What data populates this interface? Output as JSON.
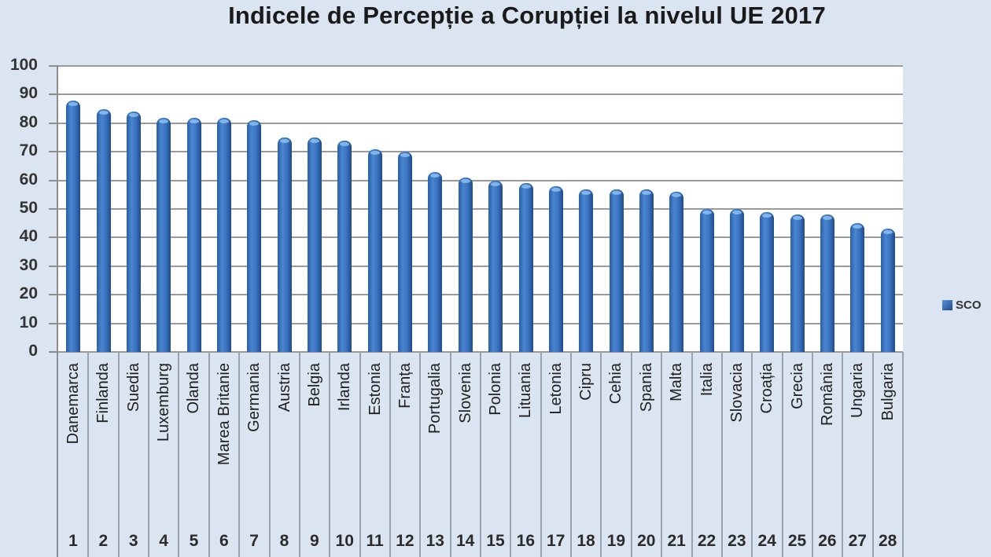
{
  "chart_data": {
    "type": "bar",
    "title": "Indicele de Percepție a Corupției la nivelul UE 2017",
    "xlabel": "",
    "ylabel": "",
    "ylim": [
      0,
      100
    ],
    "yticks": [
      0,
      10,
      20,
      30,
      40,
      50,
      60,
      70,
      80,
      90,
      100
    ],
    "grid": true,
    "legend_position": "right",
    "categories": [
      "Danemarca",
      "Finlanda",
      "Suedia",
      "Luxemburg",
      "Olanda",
      "Marea Britanie",
      "Germania",
      "Austria",
      "Belgia",
      "Irlanda",
      "Estonia",
      "Franța",
      "Portugalia",
      "Slovenia",
      "Polonia",
      "Lituania",
      "Letonia",
      "Cipru",
      "Cehia",
      "Spania",
      "Malta",
      "Italia",
      "Slovacia",
      "Croația",
      "Grecia",
      "România",
      "Ungaria",
      "Bulgaria"
    ],
    "ranks": [
      "1",
      "2",
      "3",
      "4",
      "5",
      "6",
      "7",
      "8",
      "9",
      "10",
      "11",
      "12",
      "13",
      "14",
      "15",
      "16",
      "17",
      "18",
      "19",
      "20",
      "21",
      "22",
      "23",
      "24",
      "25",
      "26",
      "27",
      "28"
    ],
    "series": [
      {
        "name": "SCO",
        "color": "#2f67b3",
        "values": [
          88,
          85,
          84,
          82,
          82,
          82,
          81,
          75,
          75,
          74,
          71,
          70,
          63,
          61,
          60,
          59,
          58,
          57,
          57,
          57,
          56,
          50,
          50,
          49,
          48,
          48,
          45,
          43
        ]
      }
    ]
  },
  "legend": {
    "label": "SCO",
    "color": "#2f67b3"
  },
  "colors": {
    "background": "#dbe5f1",
    "plot": "#ffffff",
    "bar": "#2f67b3",
    "grid": "#9a9a9a"
  }
}
